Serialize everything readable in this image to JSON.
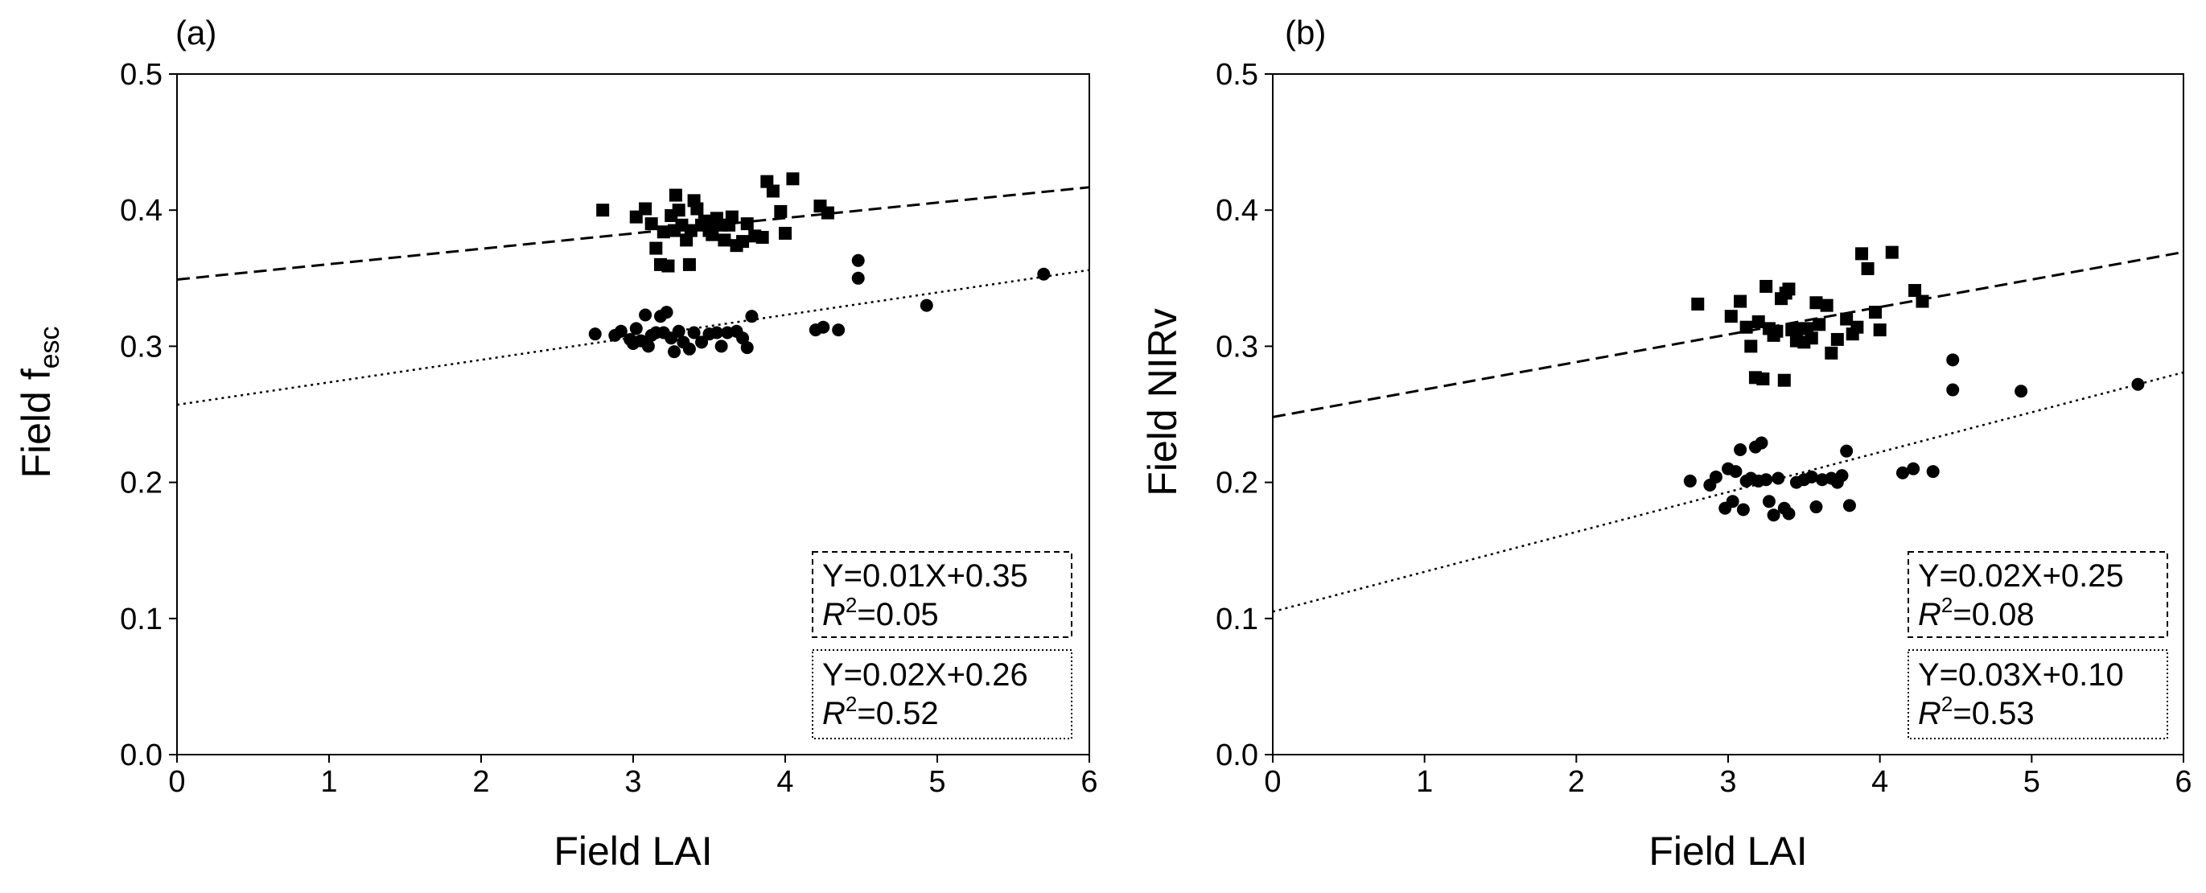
{
  "chart_data": [
    {
      "panel_label": "(a)",
      "type": "scatter",
      "xlabel": "Field LAI",
      "ylabel_main": "Field f",
      "ylabel_sub": "esc",
      "xlim": [
        0,
        6
      ],
      "ylim": [
        0,
        0.5
      ],
      "xticks": [
        "0",
        "1",
        "2",
        "3",
        "4",
        "5",
        "6"
      ],
      "yticks": [
        "0.0",
        "0.1",
        "0.2",
        "0.3",
        "0.4",
        "0.5"
      ],
      "series": [
        {
          "name": "squares",
          "marker": "square",
          "line_style": "dashed",
          "fit": {
            "slope": 0.0113,
            "intercept": 0.349
          },
          "equation": "Y=0.01X+0.35",
          "r2_label": "R",
          "r2_exp": "2",
          "r2_value": "=0.05",
          "points": [
            [
              2.8,
              0.4
            ],
            [
              3.02,
              0.395
            ],
            [
              3.08,
              0.401
            ],
            [
              3.12,
              0.39
            ],
            [
              3.15,
              0.372
            ],
            [
              3.18,
              0.36
            ],
            [
              3.2,
              0.384
            ],
            [
              3.23,
              0.359
            ],
            [
              3.25,
              0.396
            ],
            [
              3.27,
              0.385
            ],
            [
              3.28,
              0.411
            ],
            [
              3.3,
              0.4
            ],
            [
              3.32,
              0.389
            ],
            [
              3.35,
              0.378
            ],
            [
              3.37,
              0.36
            ],
            [
              3.38,
              0.385
            ],
            [
              3.4,
              0.407
            ],
            [
              3.42,
              0.401
            ],
            [
              3.45,
              0.389
            ],
            [
              3.47,
              0.392
            ],
            [
              3.5,
              0.385
            ],
            [
              3.52,
              0.382
            ],
            [
              3.55,
              0.394
            ],
            [
              3.58,
              0.389
            ],
            [
              3.6,
              0.378
            ],
            [
              3.63,
              0.389
            ],
            [
              3.65,
              0.395
            ],
            [
              3.68,
              0.374
            ],
            [
              3.72,
              0.377
            ],
            [
              3.75,
              0.39
            ],
            [
              3.8,
              0.381
            ],
            [
              3.85,
              0.38
            ],
            [
              3.88,
              0.421
            ],
            [
              3.92,
              0.414
            ],
            [
              3.97,
              0.399
            ],
            [
              4.0,
              0.383
            ],
            [
              4.05,
              0.423
            ],
            [
              4.23,
              0.403
            ],
            [
              4.28,
              0.398
            ]
          ]
        },
        {
          "name": "circles",
          "marker": "circle",
          "line_style": "dotted",
          "fit": {
            "slope": 0.0165,
            "intercept": 0.257
          },
          "equation": "Y=0.02X+0.26",
          "r2_label": "R",
          "r2_exp": "2",
          "r2_value": "=0.52",
          "points": [
            [
              2.75,
              0.309
            ],
            [
              2.88,
              0.308
            ],
            [
              2.92,
              0.311
            ],
            [
              2.98,
              0.305
            ],
            [
              3.0,
              0.302
            ],
            [
              3.02,
              0.313
            ],
            [
              3.05,
              0.304
            ],
            [
              3.08,
              0.323
            ],
            [
              3.1,
              0.3
            ],
            [
              3.12,
              0.308
            ],
            [
              3.15,
              0.31
            ],
            [
              3.18,
              0.322
            ],
            [
              3.2,
              0.31
            ],
            [
              3.22,
              0.325
            ],
            [
              3.25,
              0.306
            ],
            [
              3.27,
              0.296
            ],
            [
              3.3,
              0.311
            ],
            [
              3.33,
              0.303
            ],
            [
              3.37,
              0.298
            ],
            [
              3.4,
              0.31
            ],
            [
              3.45,
              0.303
            ],
            [
              3.5,
              0.309
            ],
            [
              3.55,
              0.31
            ],
            [
              3.58,
              0.3
            ],
            [
              3.62,
              0.31
            ],
            [
              3.68,
              0.311
            ],
            [
              3.72,
              0.306
            ],
            [
              3.75,
              0.299
            ],
            [
              3.78,
              0.322
            ],
            [
              4.2,
              0.312
            ],
            [
              4.25,
              0.314
            ],
            [
              4.35,
              0.312
            ],
            [
              4.48,
              0.363
            ],
            [
              4.48,
              0.35
            ],
            [
              4.93,
              0.33
            ],
            [
              5.7,
              0.353
            ]
          ]
        }
      ]
    },
    {
      "panel_label": "(b)",
      "type": "scatter",
      "xlabel": "Field LAI",
      "ylabel_main": "Field NIRv",
      "ylabel_sub": "",
      "xlim": [
        0,
        6
      ],
      "ylim": [
        0,
        0.5
      ],
      "xticks": [
        "0",
        "1",
        "2",
        "3",
        "4",
        "5",
        "6"
      ],
      "yticks": [
        "0.0",
        "0.1",
        "0.2",
        "0.3",
        "0.4",
        "0.5"
      ],
      "series": [
        {
          "name": "squares",
          "marker": "square",
          "line_style": "dashed",
          "fit": {
            "slope": 0.0202,
            "intercept": 0.248
          },
          "equation": "Y=0.02X+0.25",
          "r2_label": "R",
          "r2_exp": "2",
          "r2_value": "=0.08",
          "points": [
            [
              2.8,
              0.331
            ],
            [
              3.02,
              0.322
            ],
            [
              3.08,
              0.333
            ],
            [
              3.12,
              0.314
            ],
            [
              3.15,
              0.3
            ],
            [
              3.18,
              0.277
            ],
            [
              3.2,
              0.318
            ],
            [
              3.23,
              0.276
            ],
            [
              3.25,
              0.344
            ],
            [
              3.27,
              0.313
            ],
            [
              3.3,
              0.308
            ],
            [
              3.32,
              0.311
            ],
            [
              3.35,
              0.335
            ],
            [
              3.37,
              0.275
            ],
            [
              3.38,
              0.339
            ],
            [
              3.4,
              0.342
            ],
            [
              3.42,
              0.312
            ],
            [
              3.45,
              0.304
            ],
            [
              3.47,
              0.313
            ],
            [
              3.5,
              0.303
            ],
            [
              3.52,
              0.313
            ],
            [
              3.55,
              0.306
            ],
            [
              3.58,
              0.332
            ],
            [
              3.6,
              0.316
            ],
            [
              3.65,
              0.33
            ],
            [
              3.68,
              0.295
            ],
            [
              3.72,
              0.305
            ],
            [
              3.78,
              0.32
            ],
            [
              3.82,
              0.309
            ],
            [
              3.85,
              0.314
            ],
            [
              3.88,
              0.368
            ],
            [
              3.92,
              0.357
            ],
            [
              3.97,
              0.325
            ],
            [
              4.0,
              0.312
            ],
            [
              4.08,
              0.369
            ],
            [
              4.23,
              0.341
            ],
            [
              4.28,
              0.333
            ]
          ]
        },
        {
          "name": "circles",
          "marker": "circle",
          "line_style": "dotted",
          "fit": {
            "slope": 0.0293,
            "intercept": 0.105
          },
          "equation": "Y=0.03X+0.10",
          "r2_label": "R",
          "r2_exp": "2",
          "r2_value": "=0.53",
          "points": [
            [
              2.75,
              0.201
            ],
            [
              2.88,
              0.198
            ],
            [
              2.92,
              0.204
            ],
            [
              2.98,
              0.181
            ],
            [
              3.0,
              0.21
            ],
            [
              3.03,
              0.186
            ],
            [
              3.05,
              0.208
            ],
            [
              3.08,
              0.224
            ],
            [
              3.1,
              0.18
            ],
            [
              3.12,
              0.201
            ],
            [
              3.15,
              0.203
            ],
            [
              3.18,
              0.226
            ],
            [
              3.2,
              0.201
            ],
            [
              3.22,
              0.229
            ],
            [
              3.25,
              0.202
            ],
            [
              3.27,
              0.186
            ],
            [
              3.3,
              0.176
            ],
            [
              3.33,
              0.203
            ],
            [
              3.37,
              0.181
            ],
            [
              3.4,
              0.177
            ],
            [
              3.45,
              0.2
            ],
            [
              3.5,
              0.202
            ],
            [
              3.55,
              0.204
            ],
            [
              3.58,
              0.182
            ],
            [
              3.62,
              0.202
            ],
            [
              3.68,
              0.203
            ],
            [
              3.72,
              0.2
            ],
            [
              3.75,
              0.205
            ],
            [
              3.78,
              0.223
            ],
            [
              3.8,
              0.183
            ],
            [
              4.15,
              0.207
            ],
            [
              4.22,
              0.21
            ],
            [
              4.35,
              0.208
            ],
            [
              4.48,
              0.29
            ],
            [
              4.48,
              0.268
            ],
            [
              4.93,
              0.267
            ],
            [
              5.7,
              0.272
            ]
          ]
        }
      ]
    }
  ]
}
